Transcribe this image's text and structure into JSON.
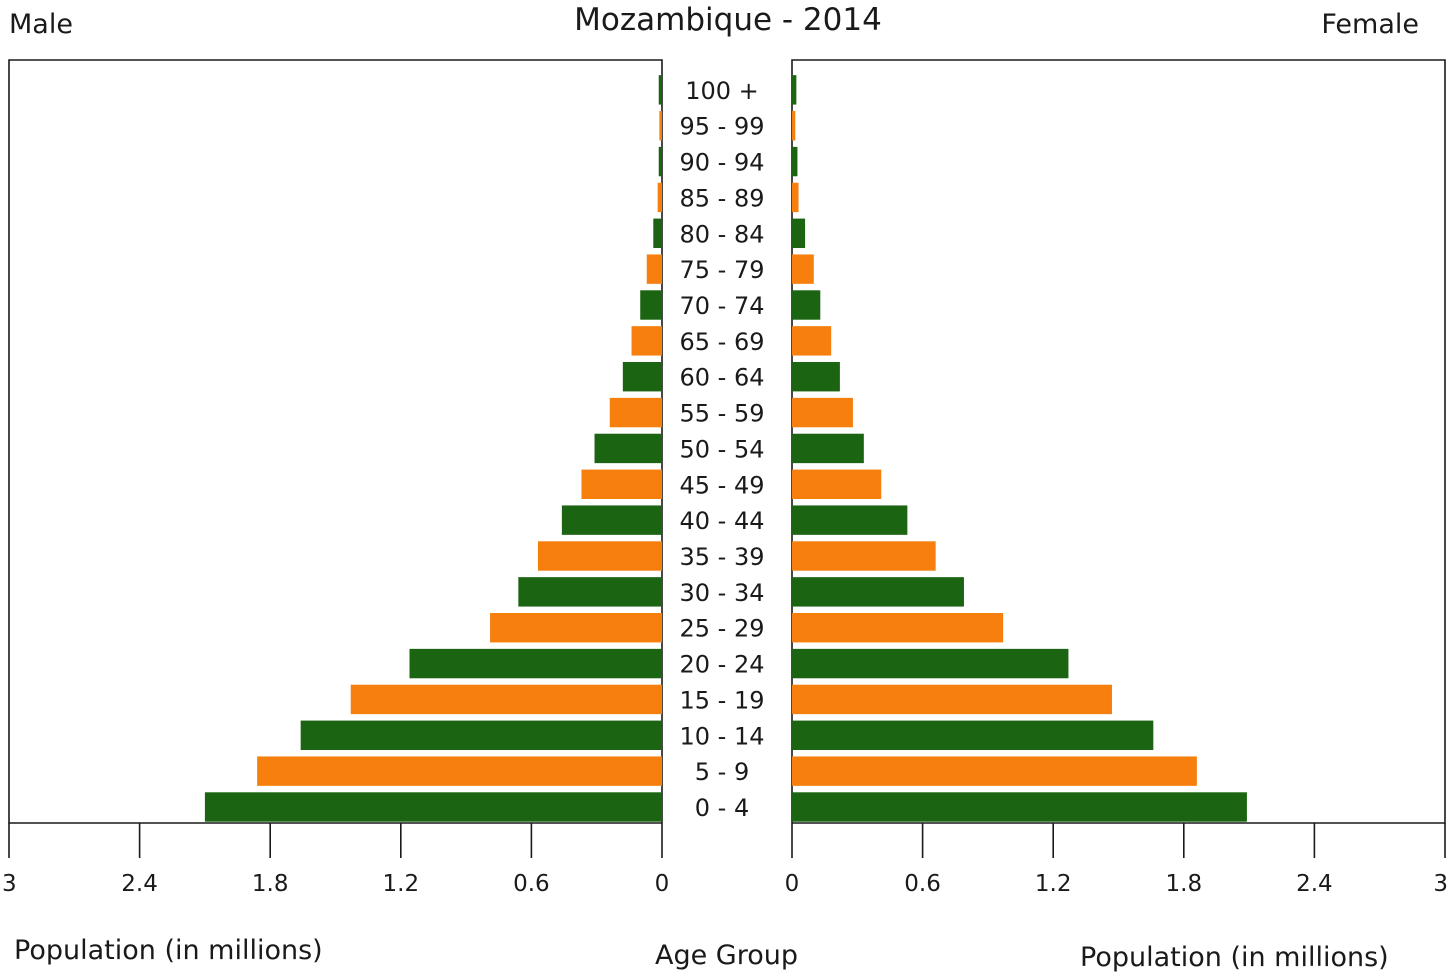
{
  "chart_data": {
    "type": "bar",
    "title": "Mozambique - 2014",
    "left_label": "Male",
    "right_label": "Female",
    "xlabel_left": "Population (in millions)",
    "xlabel_center": "Age Group",
    "xlabel_right": "Population (in millions)",
    "xlim": [
      0,
      3
    ],
    "ticks": [
      0,
      0.6,
      1.2,
      1.8,
      2.4,
      3
    ],
    "colors": {
      "green": "#1b6412",
      "orange": "#f77f0e"
    },
    "categories": [
      "0 - 4",
      "5 - 9",
      "10 - 14",
      "15 - 19",
      "20 - 24",
      "25 - 29",
      "30 - 34",
      "35 - 39",
      "40 - 44",
      "45 - 49",
      "50 - 54",
      "55 - 59",
      "60 - 64",
      "65 - 69",
      "70 - 74",
      "75 - 79",
      "80 - 84",
      "85 - 89",
      "90 - 94",
      "95 - 99",
      "100 +"
    ],
    "series": [
      {
        "name": "Male",
        "values": [
          2.1,
          1.86,
          1.66,
          1.43,
          1.16,
          0.79,
          0.66,
          0.57,
          0.46,
          0.37,
          0.31,
          0.24,
          0.18,
          0.14,
          0.1,
          0.07,
          0.04,
          0.02,
          0.015,
          0.012,
          0.015
        ]
      },
      {
        "name": "Female",
        "values": [
          2.09,
          1.86,
          1.66,
          1.47,
          1.27,
          0.97,
          0.79,
          0.66,
          0.53,
          0.41,
          0.33,
          0.28,
          0.22,
          0.18,
          0.13,
          0.1,
          0.06,
          0.03,
          0.025,
          0.015,
          0.02
        ]
      }
    ]
  }
}
